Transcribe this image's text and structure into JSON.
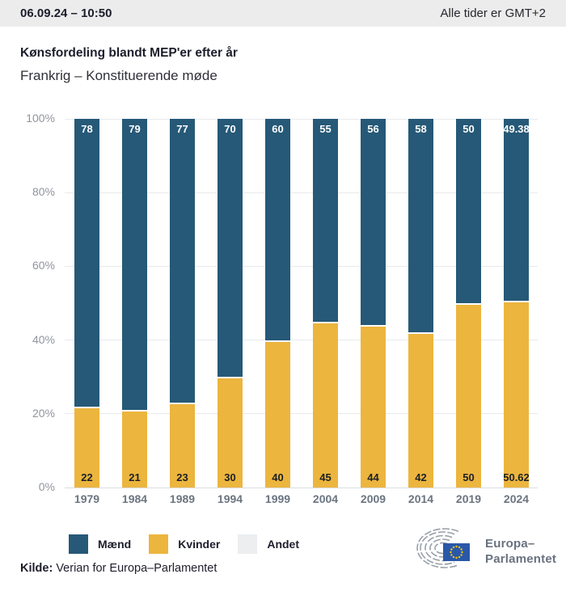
{
  "header": {
    "timestamp": "06.09.24 – 10:50",
    "timezone_note": "Alle tider er GMT+2"
  },
  "title": "Kønsfordeling blandt MEP'er efter år",
  "subtitle": "Frankrig – Konstituerende møde",
  "chart_data": {
    "type": "bar",
    "stacked": true,
    "categories": [
      "1979",
      "1984",
      "1989",
      "1994",
      "1999",
      "2004",
      "2009",
      "2014",
      "2019",
      "2024"
    ],
    "series": [
      {
        "name": "Mænd",
        "color": "#265977",
        "values": [
          78,
          79,
          77,
          70,
          60,
          55,
          56,
          58,
          50,
          49.38
        ],
        "labels": [
          "78",
          "79",
          "77",
          "70",
          "60",
          "55",
          "56",
          "58",
          "50",
          "49.38"
        ]
      },
      {
        "name": "Kvinder",
        "color": "#ecb53e",
        "values": [
          22,
          21,
          23,
          30,
          40,
          45,
          44,
          42,
          50,
          50.62
        ],
        "labels": [
          "22",
          "21",
          "23",
          "30",
          "40",
          "45",
          "44",
          "42",
          "50",
          "50.62"
        ]
      },
      {
        "name": "Andet",
        "color": "#eceef0",
        "values": [
          0,
          0,
          0,
          0,
          0,
          0,
          0,
          0,
          0,
          0
        ],
        "labels": []
      }
    ],
    "ylim": [
      0,
      100
    ],
    "ytick_values": [
      0,
      20,
      40,
      60,
      80,
      100
    ],
    "yticks": [
      "0%",
      "20%",
      "40%",
      "60%",
      "80%",
      "100%"
    ],
    "grid": true,
    "legend_position": "bottom"
  },
  "legend": {
    "items": [
      {
        "label": "Mænd",
        "color": "#265977"
      },
      {
        "label": "Kvinder",
        "color": "#ecb53e"
      },
      {
        "label": "Andet",
        "color": "#eceef0"
      }
    ]
  },
  "footer": {
    "source_label": "Kilde:",
    "source_text": "Verian for Europa–Parlamentet",
    "logo_line1": "Europa–",
    "logo_line2": "Parlamentet"
  },
  "colors": {
    "men": "#265977",
    "women": "#ecb53e",
    "other": "#eceef0",
    "header_bg": "#ececec",
    "grid": "#e8eaec",
    "eu_flag_blue": "#2a58a9",
    "eu_star_yellow": "#f5c500"
  }
}
